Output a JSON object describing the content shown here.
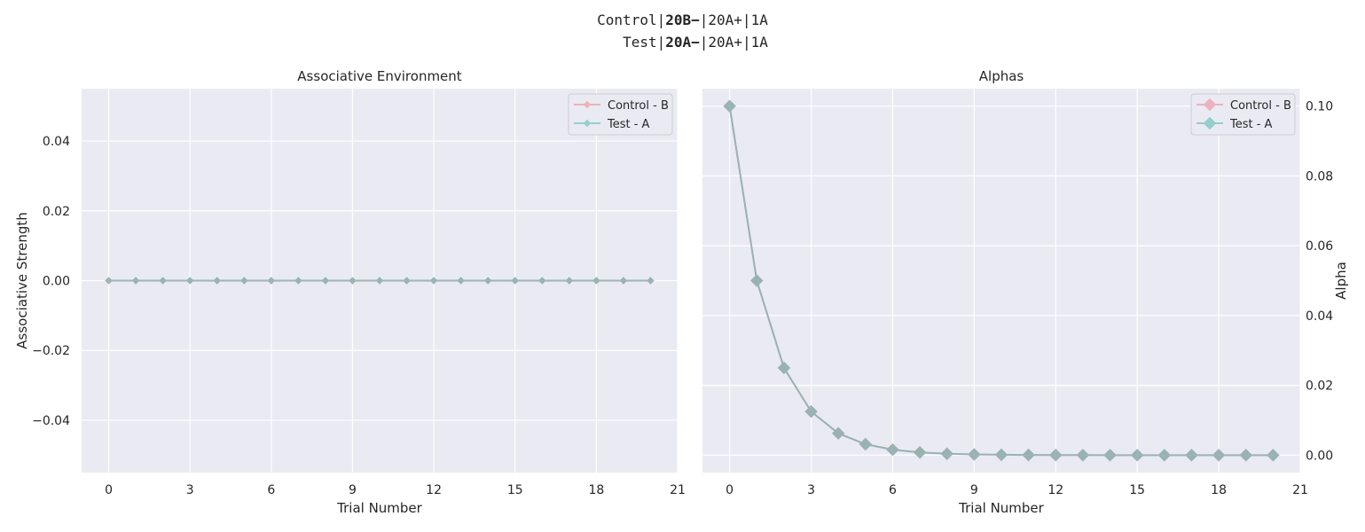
{
  "suptitle": {
    "line1": {
      "prefix": "Control|",
      "bold": "20B",
      "dash": "−",
      "suffix": "|20A+|1A"
    },
    "line2": {
      "prefix": "Test|",
      "bold": "20A",
      "dash": "−",
      "suffix": "|20A+|1A"
    }
  },
  "colors": {
    "background": "#eaeaf2",
    "grid": "#ffffff",
    "control": "#f07b8f",
    "test": "#45b3a6",
    "overlap": "#8aa6a4"
  },
  "chart_data": [
    {
      "type": "line",
      "title": "Associative Environment",
      "xlabel": "Trial Number",
      "ylabel": "Associative Strength",
      "xlim": [
        -1,
        21
      ],
      "ylim": [
        -0.055,
        0.055
      ],
      "x_ticks": [
        "0",
        "3",
        "6",
        "9",
        "12",
        "15",
        "18",
        "21"
      ],
      "y_ticks": [
        "0.04",
        "0.02",
        "0.00",
        "−0.02",
        "−0.04"
      ],
      "y_tick_values": [
        0.04,
        0.02,
        0.0,
        -0.02,
        -0.04
      ],
      "x_tick_values": [
        0,
        3,
        6,
        9,
        12,
        15,
        18,
        21
      ],
      "grid": true,
      "legend_position": "top-right",
      "x": [
        0,
        1,
        2,
        3,
        4,
        5,
        6,
        7,
        8,
        9,
        10,
        11,
        12,
        13,
        14,
        15,
        16,
        17,
        18,
        19,
        20
      ],
      "series": [
        {
          "name": "Control - B",
          "values": [
            0,
            0,
            0,
            0,
            0,
            0,
            0,
            0,
            0,
            0,
            0,
            0,
            0,
            0,
            0,
            0,
            0,
            0,
            0,
            0,
            0
          ]
        },
        {
          "name": "Test - A",
          "values": [
            0,
            0,
            0,
            0,
            0,
            0,
            0,
            0,
            0,
            0,
            0,
            0,
            0,
            0,
            0,
            0,
            0,
            0,
            0,
            0,
            0
          ]
        }
      ]
    },
    {
      "type": "line",
      "title": "Alphas",
      "xlabel": "Trial Number",
      "ylabel": "Alpha",
      "xlim": [
        -1,
        21
      ],
      "ylim": [
        -0.005,
        0.105
      ],
      "x_ticks": [
        "0",
        "3",
        "6",
        "9",
        "12",
        "15",
        "18",
        "21"
      ],
      "y_ticks": [
        "0.10",
        "0.08",
        "0.06",
        "0.04",
        "0.02",
        "0.00"
      ],
      "y_tick_values": [
        0.1,
        0.08,
        0.06,
        0.04,
        0.02,
        0.0
      ],
      "x_tick_values": [
        0,
        3,
        6,
        9,
        12,
        15,
        18,
        21
      ],
      "grid": true,
      "y_axis_side": "right",
      "legend_position": "top-right",
      "x": [
        0,
        1,
        2,
        3,
        4,
        5,
        6,
        7,
        8,
        9,
        10,
        11,
        12,
        13,
        14,
        15,
        16,
        17,
        18,
        19,
        20
      ],
      "series": [
        {
          "name": "Control - B",
          "values": [
            0.1,
            0.05,
            0.025,
            0.0125,
            0.00625,
            0.003125,
            0.0015625,
            0.00078,
            0.00039,
            0.0002,
            0.0001,
            5e-05,
            2e-05,
            1e-05,
            0,
            0,
            0,
            0,
            0,
            0,
            0
          ]
        },
        {
          "name": "Test - A",
          "values": [
            0.1,
            0.05,
            0.025,
            0.0125,
            0.00625,
            0.003125,
            0.0015625,
            0.00078,
            0.00039,
            0.0002,
            0.0001,
            5e-05,
            2e-05,
            1e-05,
            0,
            0,
            0,
            0,
            0,
            0,
            0
          ]
        }
      ]
    }
  ]
}
